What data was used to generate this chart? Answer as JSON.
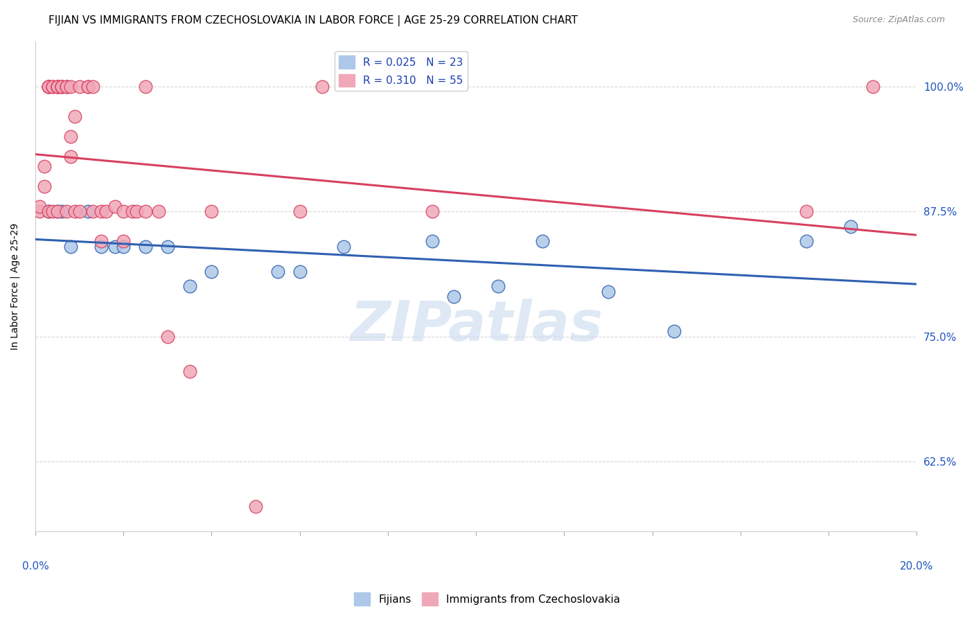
{
  "title": "FIJIAN VS IMMIGRANTS FROM CZECHOSLOVAKIA IN LABOR FORCE | AGE 25-29 CORRELATION CHART",
  "source": "Source: ZipAtlas.com",
  "ylabel": "In Labor Force | Age 25-29",
  "ytick_labels": [
    "62.5%",
    "75.0%",
    "87.5%",
    "100.0%"
  ],
  "ytick_values": [
    0.625,
    0.75,
    0.875,
    1.0
  ],
  "xlim": [
    0.0,
    0.2
  ],
  "ylim": [
    0.555,
    1.045
  ],
  "legend_r_blue": "R = 0.025",
  "legend_n_blue": "N = 23",
  "legend_r_pink": "R = 0.310",
  "legend_n_pink": "N = 55",
  "color_blue": "#adc8e8",
  "color_pink": "#f0a8b8",
  "line_color_blue": "#3060b0",
  "line_color_pink": "#d84060",
  "legend_text_color": "#1840b0",
  "watermark": "ZIPatlas",
  "background_color": "#ffffff",
  "grid_color": "#d8d8d8",
  "title_fontsize": 11,
  "tick_label_color": "#2055c0",
  "legend_fontsize": 11,
  "blue_scatter_x": [
    0.003,
    0.005,
    0.006,
    0.008,
    0.012,
    0.015,
    0.018,
    0.02,
    0.025,
    0.03,
    0.035,
    0.04,
    0.055,
    0.06,
    0.07,
    0.09,
    0.095,
    0.105,
    0.115,
    0.13,
    0.145,
    0.175,
    0.185
  ],
  "blue_scatter_y": [
    0.875,
    0.875,
    0.875,
    0.84,
    0.875,
    0.84,
    0.84,
    0.84,
    0.84,
    0.84,
    0.8,
    0.815,
    0.815,
    0.815,
    0.84,
    0.845,
    0.79,
    0.8,
    0.845,
    0.795,
    0.755,
    0.845,
    0.86
  ],
  "pink_scatter_x": [
    0.001,
    0.001,
    0.002,
    0.002,
    0.003,
    0.003,
    0.003,
    0.003,
    0.003,
    0.004,
    0.004,
    0.004,
    0.005,
    0.005,
    0.005,
    0.005,
    0.005,
    0.006,
    0.006,
    0.006,
    0.007,
    0.007,
    0.007,
    0.007,
    0.008,
    0.008,
    0.008,
    0.009,
    0.009,
    0.01,
    0.01,
    0.012,
    0.012,
    0.013,
    0.013,
    0.015,
    0.015,
    0.016,
    0.018,
    0.02,
    0.02,
    0.022,
    0.023,
    0.025,
    0.025,
    0.028,
    0.03,
    0.035,
    0.04,
    0.05,
    0.06,
    0.065,
    0.09,
    0.175,
    0.19
  ],
  "pink_scatter_y": [
    0.875,
    0.88,
    0.9,
    0.92,
    1.0,
    1.0,
    1.0,
    1.0,
    0.875,
    1.0,
    1.0,
    0.875,
    1.0,
    1.0,
    1.0,
    1.0,
    0.875,
    1.0,
    1.0,
    1.0,
    1.0,
    1.0,
    1.0,
    0.875,
    1.0,
    0.93,
    0.95,
    0.97,
    0.875,
    1.0,
    0.875,
    1.0,
    1.0,
    1.0,
    0.875,
    0.875,
    0.845,
    0.875,
    0.88,
    0.875,
    0.845,
    0.875,
    0.875,
    0.875,
    1.0,
    0.875,
    0.75,
    0.715,
    0.875,
    0.58,
    0.875,
    1.0,
    0.875,
    0.875,
    1.0
  ]
}
